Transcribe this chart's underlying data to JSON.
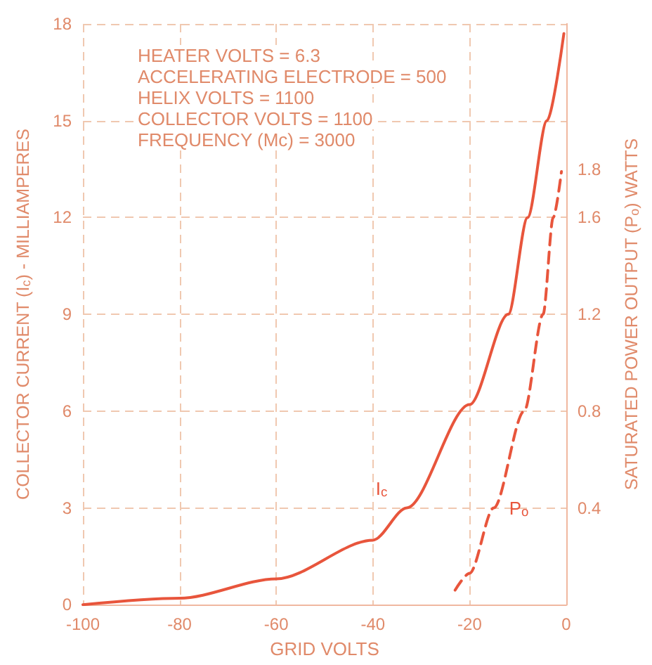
{
  "chart_data": {
    "type": "line",
    "xlabel": "GRID VOLTS",
    "ylabel": "COLLECTOR CURRENT (I$_{c}$) - MILLIAMPERES",
    "y2label": "SATURATED POWER OUTPUT (P$_{o}$) WATTS",
    "annotations": [
      "HEATER VOLTS = 6.3",
      "ACCELERATING ELECTRODE = 500",
      "HELIX VOLTS = 1100",
      "COLLECTOR VOLTS = 1100",
      "FREQUENCY (Mc) = 3000"
    ],
    "series": [
      {
        "name": "I$_{c}$",
        "color": "#e8553c",
        "line_style": "solid",
        "x": [
          -100,
          -80,
          -60,
          -40,
          -33,
          -20,
          -12,
          -8,
          -4,
          -0.5
        ],
        "values": [
          0,
          0.2,
          0.8,
          2.0,
          3.0,
          6.2,
          9,
          12,
          15,
          17.7
        ]
      },
      {
        "name": "P$_{o}$",
        "color": "#e8553c",
        "line_style": "dashed",
        "axis": "y2",
        "x": [
          -23,
          -20,
          -15,
          -8.7,
          -4.8,
          -2.7,
          -1
        ],
        "values": [
          0.06,
          0.13,
          0.4,
          0.8,
          1.2,
          1.6,
          1.79
        ]
      }
    ],
    "xlim": [
      -100,
      0
    ],
    "xticks": [
      -100,
      -80,
      -60,
      -40,
      -20,
      0
    ],
    "ylim": [
      0,
      18
    ],
    "yticks": [
      0,
      3,
      6,
      9,
      12,
      15,
      18
    ],
    "y2lim": [
      0,
      2.4
    ],
    "y2ticks": [
      0.4,
      0.8,
      1.2,
      1.6,
      1.8
    ],
    "grid": true,
    "legend": false
  }
}
